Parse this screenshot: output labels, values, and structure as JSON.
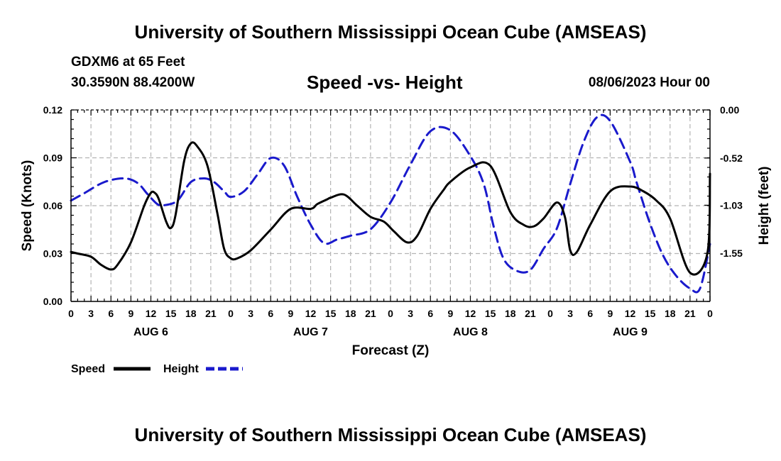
{
  "header": {
    "title": "University of Southern Mississippi Ocean Cube (AMSEAS)",
    "station": "GDXM6 at 65 Feet",
    "coords": "30.3590N  88.4200W",
    "chart_title": "Speed -vs- Height",
    "run_time": "08/06/2023 Hour 00"
  },
  "footer": {
    "title": "University of Southern Mississippi Ocean Cube (AMSEAS)"
  },
  "chart_data": {
    "type": "line",
    "title": "Speed -vs- Height",
    "xlabel": "Forecast (Z)",
    "ylabel": "Speed (Knots)",
    "y2label": "Height (feet)",
    "xlim": [
      0,
      96
    ],
    "ylim": [
      0,
      0.12
    ],
    "y2lim": [
      -2.07,
      0.0
    ],
    "x_tick_hours": [
      0,
      3,
      6,
      9,
      12,
      15,
      18,
      21,
      24,
      27,
      30,
      33,
      36,
      39,
      42,
      45,
      48,
      51,
      54,
      57,
      60,
      63,
      66,
      69,
      72,
      75,
      78,
      81,
      84,
      87,
      90,
      93,
      96
    ],
    "x_tick_labels": [
      "0",
      "3",
      "6",
      "9",
      "12",
      "15",
      "18",
      "21",
      "0",
      "3",
      "6",
      "9",
      "12",
      "15",
      "18",
      "21",
      "0",
      "3",
      "6",
      "9",
      "12",
      "15",
      "18",
      "21",
      "0",
      "3",
      "6",
      "9",
      "12",
      "15",
      "18",
      "21",
      "0"
    ],
    "day_labels": [
      {
        "hour": 12,
        "label": "AUG 6"
      },
      {
        "hour": 36,
        "label": "AUG 7"
      },
      {
        "hour": 60,
        "label": "AUG 8"
      },
      {
        "hour": 84,
        "label": "AUG 9"
      }
    ],
    "y_ticks": [
      0,
      0.03,
      0.06,
      0.09,
      0.12
    ],
    "y_tick_labels": [
      "0.00",
      "0.03",
      "0.06",
      "0.09",
      "0.12"
    ],
    "y2_ticks": [
      0.0,
      -0.52,
      -1.03,
      -1.55
    ],
    "y2_tick_labels": [
      "0.00",
      "-0.52",
      "-1.03",
      "-1.55"
    ],
    "grid": true,
    "legend_position": "bottom-left",
    "series": [
      {
        "name": "Speed",
        "axis": "left",
        "color": "#000000",
        "style": "solid",
        "x": [
          0,
          1,
          3,
          4.5,
          6,
          7,
          9,
          11,
          12,
          12.6,
          13.2,
          14.3,
          15,
          15.7,
          17,
          18,
          19,
          20.5,
          22,
          23,
          24,
          25,
          27,
          30,
          33,
          36,
          37,
          38.5,
          39,
          41,
          43,
          45,
          47,
          48.5,
          50.5,
          52,
          54,
          56,
          57,
          60,
          63,
          66,
          68,
          69.5,
          71,
          73,
          74.2,
          75,
          76,
          78,
          81,
          84,
          86,
          88,
          90,
          93,
          95.6,
          96
        ],
        "values": [
          0.031,
          0.03,
          0.028,
          0.023,
          0.02,
          0.023,
          0.037,
          0.06,
          0.068,
          0.068,
          0.064,
          0.05,
          0.046,
          0.054,
          0.088,
          0.099,
          0.097,
          0.085,
          0.055,
          0.033,
          0.027,
          0.027,
          0.032,
          0.045,
          0.058,
          0.058,
          0.061,
          0.064,
          0.065,
          0.067,
          0.06,
          0.053,
          0.05,
          0.044,
          0.037,
          0.041,
          0.058,
          0.07,
          0.075,
          0.084,
          0.085,
          0.056,
          0.048,
          0.047,
          0.052,
          0.062,
          0.053,
          0.032,
          0.031,
          0.048,
          0.069,
          0.072,
          0.069,
          0.063,
          0.052,
          0.018,
          0.03,
          0.08
        ]
      },
      {
        "name": "Height",
        "axis": "right",
        "color": "#1a1acc",
        "style": "dashed",
        "x": [
          0,
          2,
          5,
          8,
          10,
          11.5,
          13,
          14,
          16,
          18,
          20,
          21.5,
          23,
          24,
          26,
          28,
          30,
          32,
          34,
          36,
          38,
          40,
          42,
          45,
          48,
          51,
          54,
          57,
          60,
          62,
          63.5,
          65,
          67,
          69,
          71,
          73,
          75,
          77,
          79,
          81,
          84,
          85,
          87,
          89,
          91,
          93,
          94.5,
          96
        ],
        "values": [
          -0.98,
          -0.9,
          -0.78,
          -0.74,
          -0.79,
          -0.91,
          -1.02,
          -1.03,
          -0.98,
          -0.78,
          -0.74,
          -0.78,
          -0.88,
          -0.94,
          -0.88,
          -0.7,
          -0.52,
          -0.6,
          -0.94,
          -1.24,
          -1.44,
          -1.4,
          -1.36,
          -1.29,
          -1.0,
          -0.59,
          -0.23,
          -0.22,
          -0.5,
          -0.8,
          -1.26,
          -1.61,
          -1.74,
          -1.73,
          -1.5,
          -1.28,
          -0.8,
          -0.35,
          -0.08,
          -0.12,
          -0.56,
          -0.79,
          -1.23,
          -1.58,
          -1.8,
          -1.93,
          -1.93,
          -1.45
        ]
      }
    ]
  },
  "legend": {
    "items": [
      {
        "label": "Speed",
        "color": "#000000",
        "style": "solid"
      },
      {
        "label": "Height",
        "color": "#1a1acc",
        "style": "dashed"
      }
    ]
  }
}
